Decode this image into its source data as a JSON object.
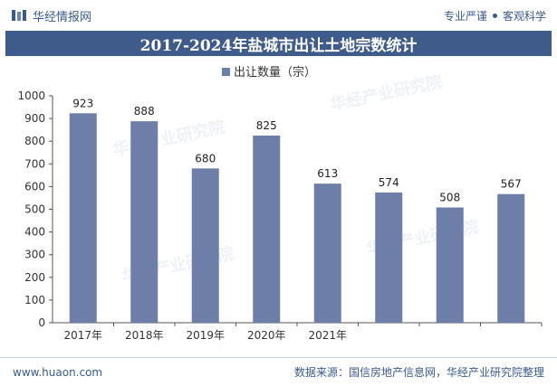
{
  "header": {
    "brand_name": "华经情报网",
    "slogan_left": "专业严谨",
    "slogan_right": "客观科学"
  },
  "footer": {
    "website": "www.huaon.com",
    "source": "数据来源：国信房地产信息网，华经产业研究院整理"
  },
  "watermark": "华经产业研究院",
  "colors": {
    "bar": "#6d7fa8",
    "title_band": "#3e5b89",
    "brand": "#3b5a8c"
  },
  "chart_data": {
    "type": "bar",
    "title": "2017-2024年盐城市出让土地宗数统计",
    "categories": [
      "2017年",
      "2018年",
      "2019年",
      "2020年",
      "2021年",
      "",
      "",
      ""
    ],
    "series": [
      {
        "name": "出让数量（宗）",
        "values": [
          923,
          888,
          680,
          825,
          613,
          574,
          508,
          567
        ]
      }
    ],
    "ylim": [
      0,
      1000
    ],
    "yticks": [
      0,
      100,
      200,
      300,
      400,
      500,
      600,
      700,
      800,
      900,
      1000
    ],
    "legend_position": "top-center",
    "grid": false
  }
}
